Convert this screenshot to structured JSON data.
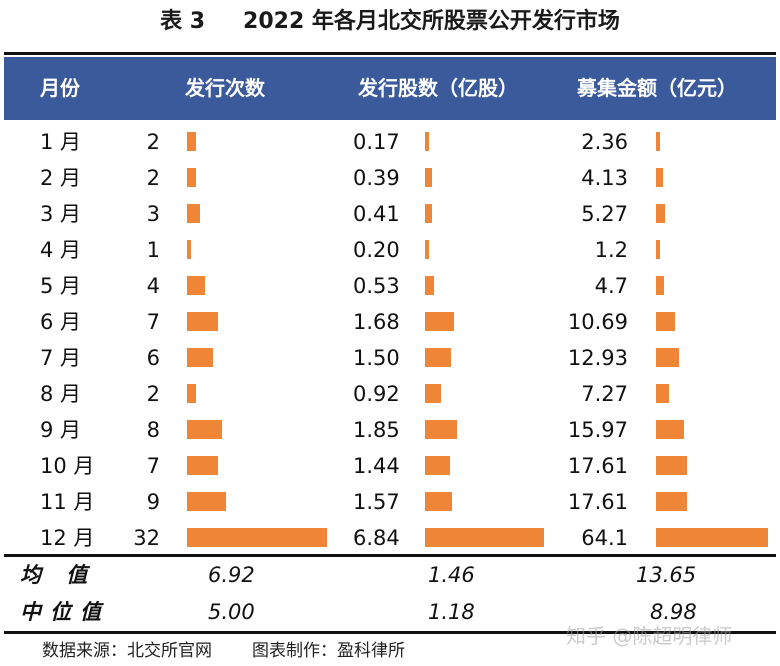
{
  "title": {
    "number": "表 3",
    "text": "2022 年各月北交所股票公开发行市场"
  },
  "header": {
    "month": "月份",
    "count": "发行次数",
    "shares": "发行股数（亿股）",
    "amount": "募集金额（亿元）"
  },
  "colors": {
    "header_bg": "#3a5a9c",
    "bar": "#ee8537"
  },
  "table": {
    "rows": [
      {
        "month": "1 月",
        "count": "2",
        "shares": "0.17",
        "amount": "2.36"
      },
      {
        "month": "2 月",
        "count": "2",
        "shares": "0.39",
        "amount": "4.13"
      },
      {
        "month": "3 月",
        "count": "3",
        "shares": "0.41",
        "amount": "5.27"
      },
      {
        "month": "4 月",
        "count": "1",
        "shares": "0.20",
        "amount": "1.2"
      },
      {
        "month": "5 月",
        "count": "4",
        "shares": "0.53",
        "amount": "4.7"
      },
      {
        "month": "6 月",
        "count": "7",
        "shares": "1.68",
        "amount": "10.69"
      },
      {
        "month": "7 月",
        "count": "6",
        "shares": "1.50",
        "amount": "12.93"
      },
      {
        "month": "8 月",
        "count": "2",
        "shares": "0.92",
        "amount": "7.27"
      },
      {
        "month": "9 月",
        "count": "8",
        "shares": "1.85",
        "amount": "15.97"
      },
      {
        "month": "10 月",
        "count": "7",
        "shares": "1.44",
        "amount": "17.61"
      },
      {
        "month": "11 月",
        "count": "9",
        "shares": "1.57",
        "amount": "17.61"
      },
      {
        "month": "12 月",
        "count": "32",
        "shares": "6.84",
        "amount": "64.1"
      }
    ]
  },
  "summary": {
    "mean": {
      "label": "均 值",
      "count": "6.92",
      "shares": "1.46",
      "amount": "13.65"
    },
    "median": {
      "label": "中位值",
      "count": "5.00",
      "shares": "1.18",
      "amount": "8.98"
    }
  },
  "footer": {
    "source": "数据来源：北交所官网",
    "credit": "图表制作：盈科律所"
  },
  "watermark": "知乎 @陈超明律师"
}
